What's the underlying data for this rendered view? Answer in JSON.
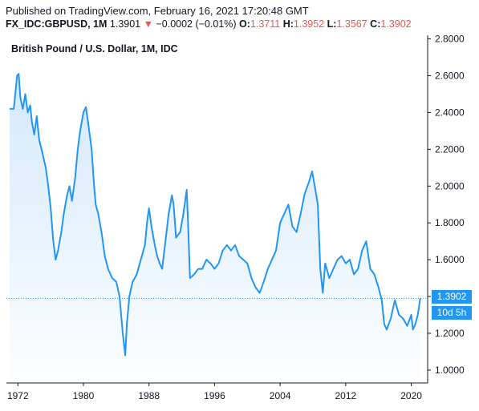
{
  "header": {
    "published": "Published on TradingView.com, February 16, 2021 17:20:48 GMT",
    "symbol": "FX_IDC:GBPUSD, 1M",
    "last": "1.3901",
    "arrow": "▼",
    "change": "−0.0002 (−0.01%)",
    "o_label": "O:",
    "o_value": "1.3711",
    "h_label": "H:",
    "h_value": "1.3952",
    "l_label": "L:",
    "l_value": "1.3567",
    "c_label": "C:",
    "c_value": "1.3902"
  },
  "price_tag": "1.3902",
  "countdown_tag": "10d 5h",
  "colors": {
    "line": "#2196f3",
    "down": "#ef5350",
    "axis": "#131722",
    "fill_top": "#cfe6fb"
  },
  "chart_data": {
    "type": "area",
    "title": "British Pound / U.S. Dollar, 1M, IDC",
    "xlabel": "",
    "ylabel": "",
    "x_ticks": [
      "1972",
      "1980",
      "1988",
      "1996",
      "2004",
      "2012",
      "2020"
    ],
    "y_ticks": [
      "1.0000",
      "1.2000",
      "1.4000",
      "1.6000",
      "1.8000",
      "2.0000",
      "2.2000",
      "2.4000",
      "2.6000",
      "2.8000"
    ],
    "xlim": [
      1970.6,
      2022.0
    ],
    "ylim": [
      0.93,
      2.82
    ],
    "grid": false,
    "last_value": 1.3902,
    "series": [
      {
        "x": [
          1971.0,
          1971.5,
          1971.9,
          1972.1,
          1972.3,
          1972.6,
          1972.9,
          1973.2,
          1973.5,
          1973.7,
          1974.0,
          1974.3,
          1974.6,
          1975.0,
          1975.4,
          1975.7,
          1976.0,
          1976.3,
          1976.6,
          1976.9,
          1977.3,
          1977.6,
          1978.0,
          1978.3,
          1978.6,
          1979.0,
          1979.3,
          1979.6,
          1980.0,
          1980.3,
          1980.7,
          1981.0,
          1981.3,
          1981.5,
          1981.8,
          1982.2,
          1982.6,
          1983.0,
          1983.5,
          1984.0,
          1984.4,
          1984.8,
          1985.1,
          1985.3,
          1985.6,
          1986.0,
          1986.5,
          1987.0,
          1987.5,
          1987.8,
          1988.0,
          1988.3,
          1988.7,
          1989.0,
          1989.3,
          1989.6,
          1990.0,
          1990.4,
          1990.8,
          1991.0,
          1991.3,
          1991.8,
          1992.2,
          1992.6,
          1992.75,
          1993.0,
          1993.5,
          1994.0,
          1994.5,
          1995.0,
          1995.5,
          1996.0,
          1996.5,
          1997.0,
          1997.5,
          1998.0,
          1998.5,
          1999.0,
          1999.5,
          2000.0,
          2000.5,
          2001.0,
          2001.5,
          2002.0,
          2002.5,
          2003.0,
          2003.5,
          2004.0,
          2004.5,
          2005.0,
          2005.5,
          2006.0,
          2006.5,
          2007.0,
          2007.5,
          2007.9,
          2008.3,
          2008.6,
          2008.9,
          2009.2,
          2009.5,
          2010.0,
          2010.5,
          2011.0,
          2011.5,
          2012.0,
          2012.5,
          2013.0,
          2013.5,
          2014.0,
          2014.5,
          2015.0,
          2015.5,
          2016.0,
          2016.4,
          2016.7,
          2017.0,
          2017.5,
          2018.0,
          2018.5,
          2019.0,
          2019.5,
          2020.0,
          2020.2,
          2020.5,
          2020.8,
          2021.1
        ],
        "values": [
          2.42,
          2.42,
          2.6,
          2.61,
          2.48,
          2.42,
          2.5,
          2.4,
          2.44,
          2.35,
          2.28,
          2.38,
          2.25,
          2.18,
          2.1,
          2.0,
          1.88,
          1.71,
          1.6,
          1.65,
          1.75,
          1.85,
          1.95,
          2.0,
          1.92,
          2.05,
          2.2,
          2.3,
          2.4,
          2.43,
          2.3,
          2.2,
          2.0,
          1.9,
          1.85,
          1.75,
          1.62,
          1.55,
          1.5,
          1.48,
          1.4,
          1.2,
          1.08,
          1.25,
          1.4,
          1.48,
          1.52,
          1.6,
          1.68,
          1.82,
          1.88,
          1.78,
          1.68,
          1.62,
          1.58,
          1.55,
          1.7,
          1.85,
          1.95,
          1.9,
          1.72,
          1.75,
          1.85,
          1.98,
          1.82,
          1.5,
          1.52,
          1.55,
          1.55,
          1.6,
          1.58,
          1.55,
          1.58,
          1.65,
          1.68,
          1.65,
          1.68,
          1.62,
          1.6,
          1.58,
          1.5,
          1.45,
          1.42,
          1.48,
          1.55,
          1.6,
          1.65,
          1.8,
          1.85,
          1.9,
          1.78,
          1.75,
          1.85,
          1.96,
          2.02,
          2.08,
          1.98,
          1.9,
          1.55,
          1.42,
          1.58,
          1.5,
          1.55,
          1.6,
          1.62,
          1.58,
          1.6,
          1.52,
          1.55,
          1.65,
          1.7,
          1.55,
          1.52,
          1.45,
          1.38,
          1.25,
          1.22,
          1.28,
          1.38,
          1.3,
          1.28,
          1.24,
          1.3,
          1.22,
          1.25,
          1.3,
          1.39
        ]
      }
    ]
  }
}
